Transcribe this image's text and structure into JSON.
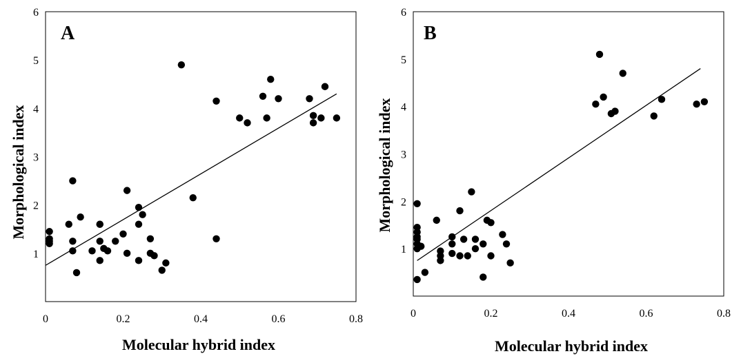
{
  "chart_data": [
    {
      "type": "scatter",
      "title": "A",
      "xlabel": "Molecular hybrid index",
      "ylabel": "Morphological index",
      "xlim": [
        0,
        0.8
      ],
      "ylim": [
        0,
        6
      ],
      "xticks": [
        "0",
        "0.2",
        "0.4",
        "0.6",
        "0.8"
      ],
      "yticks": [
        "1",
        "2",
        "3",
        "4",
        "5",
        "6"
      ],
      "grid": false,
      "trendline": {
        "x": [
          0,
          0.75
        ],
        "y": [
          0.75,
          4.3
        ]
      },
      "points": [
        [
          0.01,
          1.45
        ],
        [
          0.01,
          1.3
        ],
        [
          0.01,
          1.25
        ],
        [
          0.01,
          1.2
        ],
        [
          0.06,
          1.6
        ],
        [
          0.07,
          2.5
        ],
        [
          0.07,
          1.25
        ],
        [
          0.07,
          1.05
        ],
        [
          0.08,
          0.6
        ],
        [
          0.09,
          1.75
        ],
        [
          0.12,
          1.05
        ],
        [
          0.14,
          1.6
        ],
        [
          0.14,
          1.6
        ],
        [
          0.14,
          1.25
        ],
        [
          0.14,
          0.85
        ],
        [
          0.15,
          1.1
        ],
        [
          0.16,
          1.05
        ],
        [
          0.18,
          1.25
        ],
        [
          0.2,
          1.4
        ],
        [
          0.21,
          2.3
        ],
        [
          0.21,
          1.0
        ],
        [
          0.24,
          1.95
        ],
        [
          0.24,
          1.6
        ],
        [
          0.24,
          0.85
        ],
        [
          0.25,
          1.8
        ],
        [
          0.27,
          1.0
        ],
        [
          0.27,
          1.3
        ],
        [
          0.28,
          0.95
        ],
        [
          0.3,
          0.65
        ],
        [
          0.31,
          0.8
        ],
        [
          0.35,
          4.9
        ],
        [
          0.38,
          2.15
        ],
        [
          0.44,
          4.15
        ],
        [
          0.44,
          1.3
        ],
        [
          0.5,
          3.8
        ],
        [
          0.52,
          3.7
        ],
        [
          0.56,
          4.25
        ],
        [
          0.57,
          3.8
        ],
        [
          0.58,
          4.6
        ],
        [
          0.6,
          4.2
        ],
        [
          0.68,
          4.2
        ],
        [
          0.69,
          3.85
        ],
        [
          0.69,
          3.7
        ],
        [
          0.71,
          3.8
        ],
        [
          0.72,
          4.45
        ],
        [
          0.75,
          3.8
        ]
      ]
    },
    {
      "type": "scatter",
      "title": "B",
      "xlabel": "Molecular hybrid index",
      "ylabel": "Morphological index",
      "xlim": [
        0,
        0.8
      ],
      "ylim": [
        0,
        6
      ],
      "xticks": [
        "0",
        "0.2",
        "0.4",
        "0.6",
        "0.8"
      ],
      "yticks": [
        "1",
        "2",
        "3",
        "4",
        "5",
        "6"
      ],
      "grid": false,
      "trendline": {
        "x": [
          0.01,
          0.74
        ],
        "y": [
          0.75,
          4.8
        ]
      },
      "points": [
        [
          0.01,
          1.95
        ],
        [
          0.01,
          1.45
        ],
        [
          0.01,
          1.35
        ],
        [
          0.01,
          1.25
        ],
        [
          0.01,
          1.2
        ],
        [
          0.01,
          1.1
        ],
        [
          0.01,
          1.0
        ],
        [
          0.01,
          0.35
        ],
        [
          0.02,
          1.05
        ],
        [
          0.03,
          0.5
        ],
        [
          0.06,
          1.6
        ],
        [
          0.07,
          0.95
        ],
        [
          0.07,
          0.85
        ],
        [
          0.07,
          0.75
        ],
        [
          0.1,
          1.25
        ],
        [
          0.1,
          1.1
        ],
        [
          0.1,
          0.9
        ],
        [
          0.12,
          1.8
        ],
        [
          0.12,
          0.85
        ],
        [
          0.13,
          1.2
        ],
        [
          0.14,
          0.85
        ],
        [
          0.15,
          2.2
        ],
        [
          0.16,
          1.2
        ],
        [
          0.16,
          1.0
        ],
        [
          0.18,
          1.1
        ],
        [
          0.18,
          0.4
        ],
        [
          0.19,
          1.6
        ],
        [
          0.2,
          1.55
        ],
        [
          0.2,
          0.85
        ],
        [
          0.23,
          1.3
        ],
        [
          0.24,
          1.1
        ],
        [
          0.25,
          0.7
        ],
        [
          0.47,
          4.05
        ],
        [
          0.48,
          5.1
        ],
        [
          0.49,
          4.2
        ],
        [
          0.51,
          3.85
        ],
        [
          0.52,
          3.9
        ],
        [
          0.54,
          4.7
        ],
        [
          0.62,
          3.8
        ],
        [
          0.64,
          4.15
        ],
        [
          0.73,
          4.05
        ],
        [
          0.75,
          4.1
        ]
      ]
    }
  ]
}
